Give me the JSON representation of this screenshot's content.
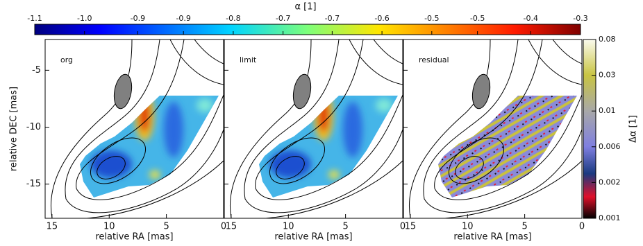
{
  "chart_data": {
    "type": "image-map",
    "colorbar": {
      "label": "α [1]",
      "lim": [
        -1.1,
        -0.3
      ],
      "ticks": [
        -1.1,
        {
          "value": -1.027,
          "label": "-1.0"
        },
        {
          "value": -0.949,
          "label": "-0.9"
        },
        {
          "value": -0.882,
          "label": "-0.9"
        },
        {
          "value": -0.809,
          "label": "-0.8"
        },
        {
          "value": -0.736,
          "label": "-0.7"
        },
        {
          "value": -0.664,
          "label": "-0.7"
        },
        {
          "value": -0.591,
          "label": "-0.6"
        },
        {
          "value": -0.518,
          "label": "-0.5"
        },
        {
          "value": -0.451,
          "label": "-0.5"
        },
        {
          "value": -0.373,
          "label": "-0.4"
        },
        -0.3
      ]
    },
    "colorbar2": {
      "label": "Δα [1]",
      "ticks": [
        0.08,
        0.03,
        0.01,
        0.006,
        0.002,
        0.001
      ]
    },
    "xlabel": "relative RA [mas]",
    "ylabel": "relative DEC [mas]",
    "xlim": [
      15.6,
      0
    ],
    "ylim": [
      -18,
      -2.3
    ],
    "xticks": [
      15,
      10,
      5,
      0
    ],
    "yticks": [
      -15,
      -10,
      -5
    ],
    "panels": [
      {
        "label": "org"
      },
      {
        "label": "limit"
      },
      {
        "label": "residual"
      }
    ]
  }
}
